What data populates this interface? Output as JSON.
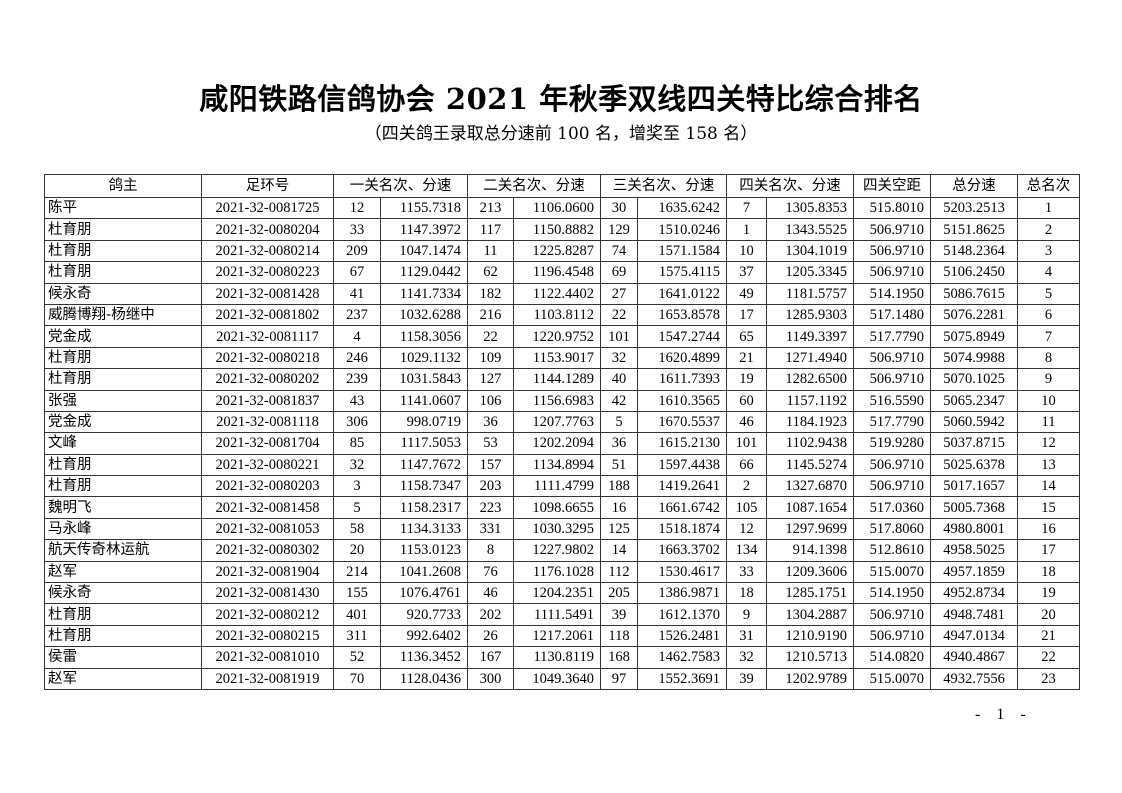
{
  "title": "咸阳铁路信鸽协会 2021 年秋季双线四关特比综合排名",
  "subtitle": "（四关鸽王录取总分速前 100 名，增奖至 158 名）",
  "table": {
    "headers": [
      "鸽主",
      "足环号",
      "一关名次、分速",
      "二关名次、分速",
      "三关名次、分速",
      "四关名次、分速",
      "四关空距",
      "总分速",
      "总名次"
    ],
    "rows": [
      [
        "陈平",
        "2021-32-0081725",
        "12",
        "1155.7318",
        "213",
        "1106.0600",
        "30",
        "1635.6242",
        "7",
        "1305.8353",
        "515.8010",
        "5203.2513",
        "1"
      ],
      [
        "杜育朋",
        "2021-32-0080204",
        "33",
        "1147.3972",
        "117",
        "1150.8882",
        "129",
        "1510.0246",
        "1",
        "1343.5525",
        "506.9710",
        "5151.8625",
        "2"
      ],
      [
        "杜育朋",
        "2021-32-0080214",
        "209",
        "1047.1474",
        "11",
        "1225.8287",
        "74",
        "1571.1584",
        "10",
        "1304.1019",
        "506.9710",
        "5148.2364",
        "3"
      ],
      [
        "杜育朋",
        "2021-32-0080223",
        "67",
        "1129.0442",
        "62",
        "1196.4548",
        "69",
        "1575.4115",
        "37",
        "1205.3345",
        "506.9710",
        "5106.2450",
        "4"
      ],
      [
        "候永奇",
        "2021-32-0081428",
        "41",
        "1141.7334",
        "182",
        "1122.4402",
        "27",
        "1641.0122",
        "49",
        "1181.5757",
        "514.1950",
        "5086.7615",
        "5"
      ],
      [
        "威腾博翔-杨继中",
        "2021-32-0081802",
        "237",
        "1032.6288",
        "216",
        "1103.8112",
        "22",
        "1653.8578",
        "17",
        "1285.9303",
        "517.1480",
        "5076.2281",
        "6"
      ],
      [
        "党金成",
        "2021-32-0081117",
        "4",
        "1158.3056",
        "22",
        "1220.9752",
        "101",
        "1547.2744",
        "65",
        "1149.3397",
        "517.7790",
        "5075.8949",
        "7"
      ],
      [
        "杜育朋",
        "2021-32-0080218",
        "246",
        "1029.1132",
        "109",
        "1153.9017",
        "32",
        "1620.4899",
        "21",
        "1271.4940",
        "506.9710",
        "5074.9988",
        "8"
      ],
      [
        "杜育朋",
        "2021-32-0080202",
        "239",
        "1031.5843",
        "127",
        "1144.1289",
        "40",
        "1611.7393",
        "19",
        "1282.6500",
        "506.9710",
        "5070.1025",
        "9"
      ],
      [
        "张强",
        "2021-32-0081837",
        "43",
        "1141.0607",
        "106",
        "1156.6983",
        "42",
        "1610.3565",
        "60",
        "1157.1192",
        "516.5590",
        "5065.2347",
        "10"
      ],
      [
        "党金成",
        "2021-32-0081118",
        "306",
        "998.0719",
        "36",
        "1207.7763",
        "5",
        "1670.5537",
        "46",
        "1184.1923",
        "517.7790",
        "5060.5942",
        "11"
      ],
      [
        "文峰",
        "2021-32-0081704",
        "85",
        "1117.5053",
        "53",
        "1202.2094",
        "36",
        "1615.2130",
        "101",
        "1102.9438",
        "519.9280",
        "5037.8715",
        "12"
      ],
      [
        "杜育朋",
        "2021-32-0080221",
        "32",
        "1147.7672",
        "157",
        "1134.8994",
        "51",
        "1597.4438",
        "66",
        "1145.5274",
        "506.9710",
        "5025.6378",
        "13"
      ],
      [
        "杜育朋",
        "2021-32-0080203",
        "3",
        "1158.7347",
        "203",
        "1111.4799",
        "188",
        "1419.2641",
        "2",
        "1327.6870",
        "506.9710",
        "5017.1657",
        "14"
      ],
      [
        "魏明飞",
        "2021-32-0081458",
        "5",
        "1158.2317",
        "223",
        "1098.6655",
        "16",
        "1661.6742",
        "105",
        "1087.1654",
        "517.0360",
        "5005.7368",
        "15"
      ],
      [
        "马永峰",
        "2021-32-0081053",
        "58",
        "1134.3133",
        "331",
        "1030.3295",
        "125",
        "1518.1874",
        "12",
        "1297.9699",
        "517.8060",
        "4980.8001",
        "16"
      ],
      [
        "航天传奇林运航",
        "2021-32-0080302",
        "20",
        "1153.0123",
        "8",
        "1227.9802",
        "14",
        "1663.3702",
        "134",
        "914.1398",
        "512.8610",
        "4958.5025",
        "17"
      ],
      [
        "赵军",
        "2021-32-0081904",
        "214",
        "1041.2608",
        "76",
        "1176.1028",
        "112",
        "1530.4617",
        "33",
        "1209.3606",
        "515.0070",
        "4957.1859",
        "18"
      ],
      [
        "候永奇",
        "2021-32-0081430",
        "155",
        "1076.4761",
        "46",
        "1204.2351",
        "205",
        "1386.9871",
        "18",
        "1285.1751",
        "514.1950",
        "4952.8734",
        "19"
      ],
      [
        "杜育朋",
        "2021-32-0080212",
        "401",
        "920.7733",
        "202",
        "1111.5491",
        "39",
        "1612.1370",
        "9",
        "1304.2887",
        "506.9710",
        "4948.7481",
        "20"
      ],
      [
        "杜育朋",
        "2021-32-0080215",
        "311",
        "992.6402",
        "26",
        "1217.2061",
        "118",
        "1526.2481",
        "31",
        "1210.9190",
        "506.9710",
        "4947.0134",
        "21"
      ],
      [
        "侯雷",
        "2021-32-0081010",
        "52",
        "1136.3452",
        "167",
        "1130.8119",
        "168",
        "1462.7583",
        "32",
        "1210.5713",
        "514.0820",
        "4940.4867",
        "22"
      ],
      [
        "赵军",
        "2021-32-0081919",
        "70",
        "1128.0436",
        "300",
        "1049.3640",
        "97",
        "1552.3691",
        "39",
        "1202.9789",
        "515.0070",
        "4932.7556",
        "23"
      ]
    ]
  },
  "page_number": "- 1 -"
}
